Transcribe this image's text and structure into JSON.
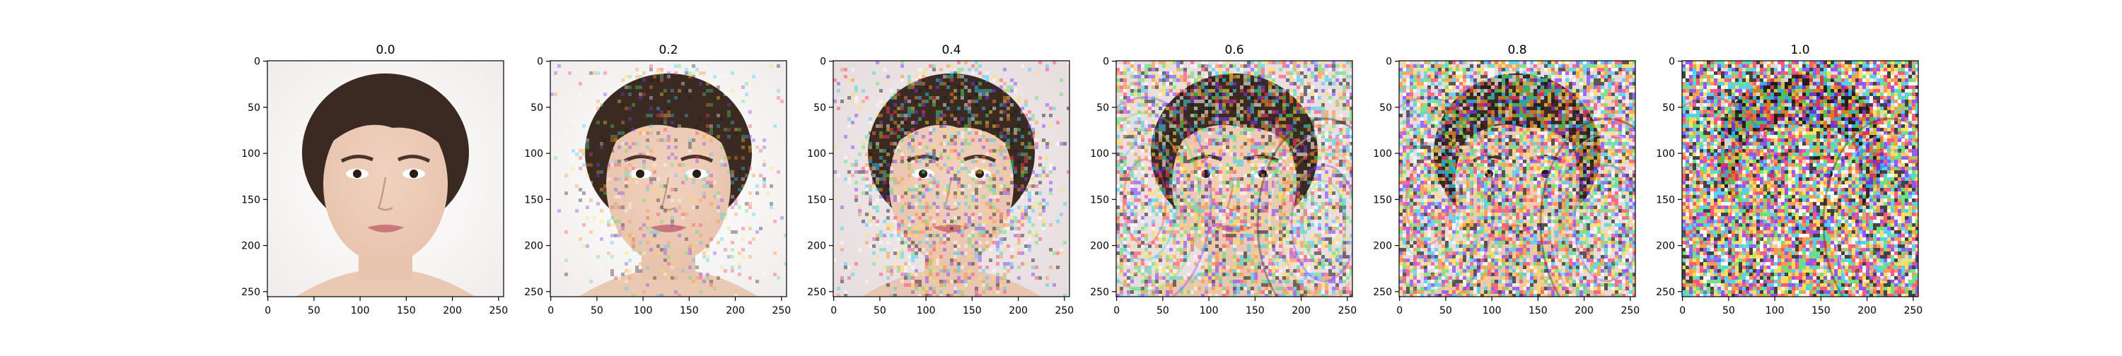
{
  "panels": [
    {
      "title": "0.0",
      "noise": 0.0
    },
    {
      "title": "0.2",
      "noise": 0.2
    },
    {
      "title": "0.4",
      "noise": 0.4
    },
    {
      "title": "0.6",
      "noise": 0.6
    },
    {
      "title": "0.8",
      "noise": 0.8
    },
    {
      "title": "1.0",
      "noise": 1.0
    }
  ],
  "axes": {
    "x_ticks": [
      "0",
      "50",
      "100",
      "150",
      "200",
      "250"
    ],
    "y_ticks": [
      "0",
      "50",
      "100",
      "150",
      "200",
      "250"
    ]
  },
  "colors": {
    "background": "#ffffff",
    "skin": "#e8c3ad",
    "hair": "#3a2a22",
    "lips": "#c9787a",
    "noise_palette": [
      "#ff3b6b",
      "#2fd0ff",
      "#ffe14a",
      "#55e36a",
      "#7a3cff",
      "#ff8f2f",
      "#ffffff",
      "#1b1b1b"
    ]
  }
}
